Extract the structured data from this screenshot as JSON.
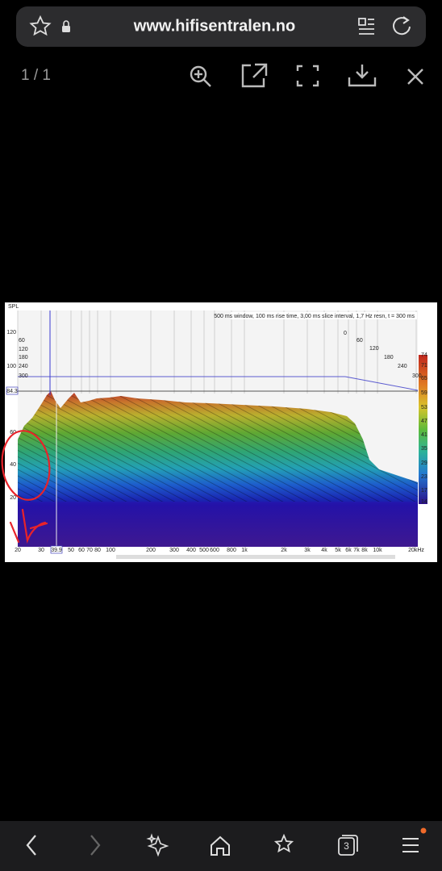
{
  "browser": {
    "url": "www.hifisentralen.no",
    "page_counter": "1 / 1",
    "tab_count": "3"
  },
  "image": {
    "spl_label": "SPL",
    "caption": "500 ms window, 100 ms rise time, 3,00 ms slice interval, 1,7 Hz resn, t = 300 ms",
    "y_labels": [
      "120",
      "100",
      "60",
      "40",
      "20"
    ],
    "time_labels_left": [
      "60",
      "120",
      "180",
      "240",
      "300"
    ],
    "time_labels_right": [
      "0",
      "60",
      "120",
      "180",
      "240",
      "300"
    ],
    "cursor_level": "84.3",
    "cursor_freq": "39.9",
    "colorbar_labels": [
      "74",
      "71",
      "65",
      "59",
      "53",
      "47",
      "41",
      "35",
      "29",
      "23",
      "17",
      "14"
    ],
    "x_labels": [
      "20",
      "30",
      "39.9",
      "50",
      "60",
      "70",
      "80",
      "100",
      "200",
      "300",
      "400",
      "500",
      "600",
      "800",
      "1k",
      "2k",
      "3k",
      "4k",
      "5k",
      "6k",
      "7k",
      "8k",
      "10k",
      "20kHz"
    ]
  }
}
